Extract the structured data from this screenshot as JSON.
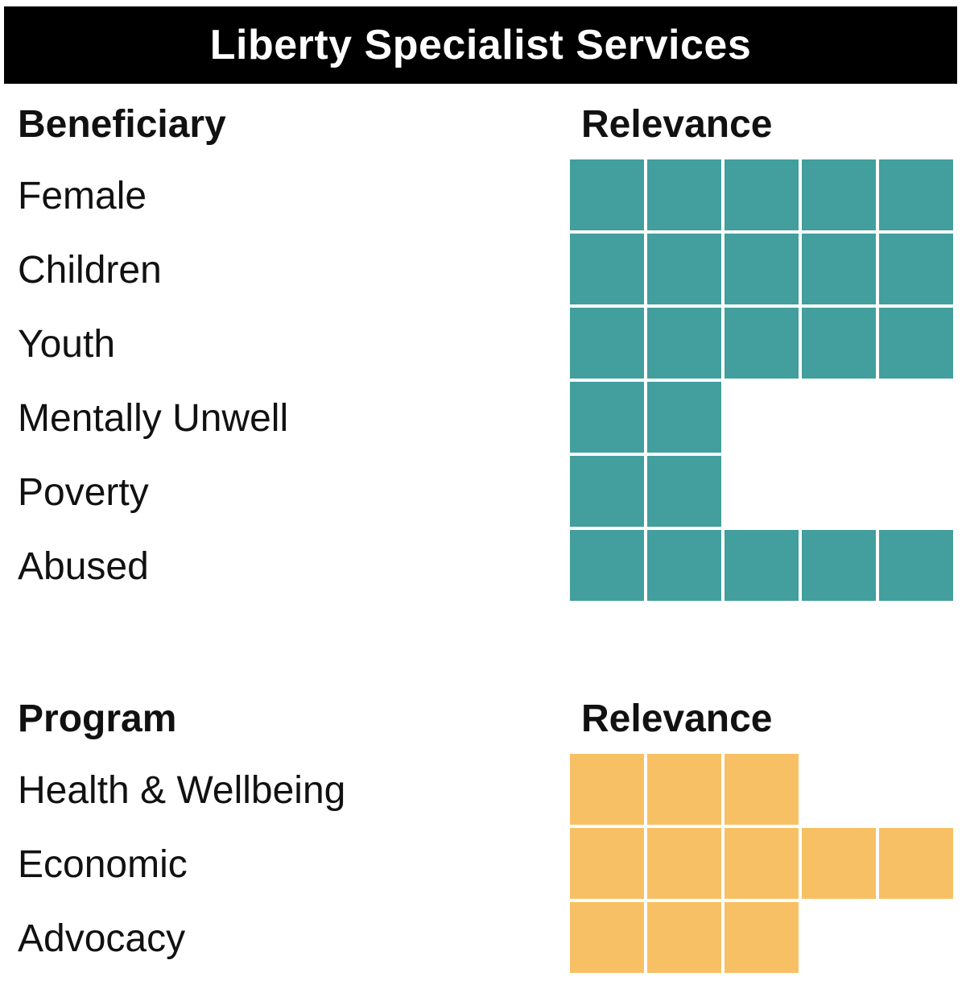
{
  "title": "Liberty Specialist Services",
  "chart_data": [
    {
      "type": "table",
      "column_headers": [
        "Beneficiary",
        "Relevance"
      ],
      "max_relevance": 5,
      "color": "#439e9e",
      "rows": [
        {
          "label": "Female",
          "value": 5
        },
        {
          "label": "Children",
          "value": 5
        },
        {
          "label": "Youth",
          "value": 5
        },
        {
          "label": "Mentally Unwell",
          "value": 2
        },
        {
          "label": "Poverty",
          "value": 2
        },
        {
          "label": "Abused",
          "value": 5
        }
      ]
    },
    {
      "type": "table",
      "column_headers": [
        "Program",
        "Relevance"
      ],
      "max_relevance": 5,
      "color": "#f8c064",
      "rows": [
        {
          "label": "Health & Wellbeing",
          "value": 3
        },
        {
          "label": "Economic",
          "value": 5
        },
        {
          "label": "Advocacy",
          "value": 3
        }
      ]
    }
  ]
}
